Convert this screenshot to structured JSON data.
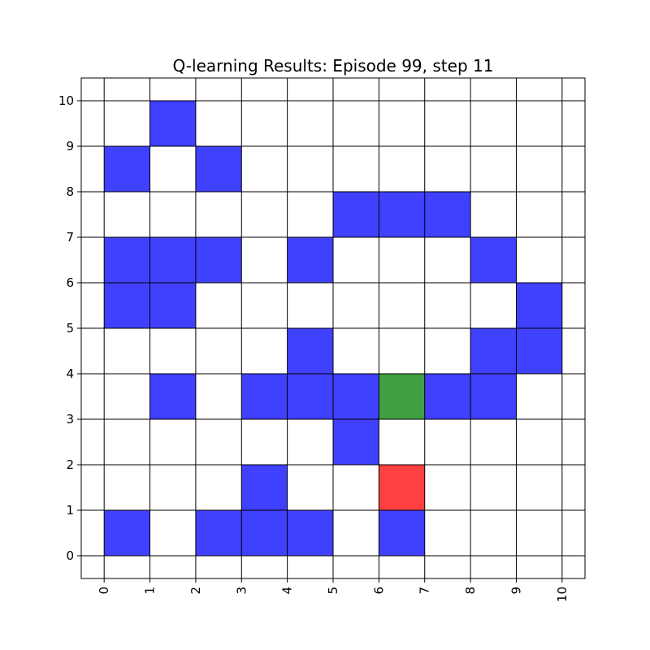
{
  "chart_data": {
    "type": "heatmap",
    "title": "Q-learning Results: Episode 99, step 11",
    "xlabel": "",
    "ylabel": "",
    "xlim": [
      -0.5,
      10.5
    ],
    "ylim": [
      -0.5,
      10.5
    ],
    "x_ticks": [
      "0",
      "1",
      "2",
      "3",
      "4",
      "5",
      "6",
      "7",
      "8",
      "9",
      "10"
    ],
    "y_ticks": [
      "0",
      "1",
      "2",
      "3",
      "4",
      "5",
      "6",
      "7",
      "8",
      "9",
      "10"
    ],
    "grid": true,
    "colors": {
      "obstacle": "#4040ff",
      "goal": "#40a040",
      "agent": "#ff4040"
    },
    "cells": [
      {
        "x": 1,
        "y": 9,
        "kind": "obstacle"
      },
      {
        "x": 0,
        "y": 8,
        "kind": "obstacle"
      },
      {
        "x": 2,
        "y": 8,
        "kind": "obstacle"
      },
      {
        "x": 5,
        "y": 7,
        "kind": "obstacle"
      },
      {
        "x": 6,
        "y": 7,
        "kind": "obstacle"
      },
      {
        "x": 7,
        "y": 7,
        "kind": "obstacle"
      },
      {
        "x": 0,
        "y": 6,
        "kind": "obstacle"
      },
      {
        "x": 1,
        "y": 6,
        "kind": "obstacle"
      },
      {
        "x": 2,
        "y": 6,
        "kind": "obstacle"
      },
      {
        "x": 4,
        "y": 6,
        "kind": "obstacle"
      },
      {
        "x": 8,
        "y": 6,
        "kind": "obstacle"
      },
      {
        "x": 0,
        "y": 5,
        "kind": "obstacle"
      },
      {
        "x": 1,
        "y": 5,
        "kind": "obstacle"
      },
      {
        "x": 9,
        "y": 5,
        "kind": "obstacle"
      },
      {
        "x": 4,
        "y": 4,
        "kind": "obstacle"
      },
      {
        "x": 8,
        "y": 4,
        "kind": "obstacle"
      },
      {
        "x": 9,
        "y": 4,
        "kind": "obstacle"
      },
      {
        "x": 1,
        "y": 3,
        "kind": "obstacle"
      },
      {
        "x": 3,
        "y": 3,
        "kind": "obstacle"
      },
      {
        "x": 4,
        "y": 3,
        "kind": "obstacle"
      },
      {
        "x": 5,
        "y": 3,
        "kind": "obstacle"
      },
      {
        "x": 6,
        "y": 3,
        "kind": "goal"
      },
      {
        "x": 7,
        "y": 3,
        "kind": "obstacle"
      },
      {
        "x": 8,
        "y": 3,
        "kind": "obstacle"
      },
      {
        "x": 5,
        "y": 2,
        "kind": "obstacle"
      },
      {
        "x": 3,
        "y": 1,
        "kind": "obstacle"
      },
      {
        "x": 6,
        "y": 1,
        "kind": "agent"
      },
      {
        "x": 0,
        "y": 0,
        "kind": "obstacle"
      },
      {
        "x": 2,
        "y": 0,
        "kind": "obstacle"
      },
      {
        "x": 3,
        "y": 0,
        "kind": "obstacle"
      },
      {
        "x": 4,
        "y": 0,
        "kind": "obstacle"
      },
      {
        "x": 6,
        "y": 0,
        "kind": "obstacle"
      }
    ]
  }
}
